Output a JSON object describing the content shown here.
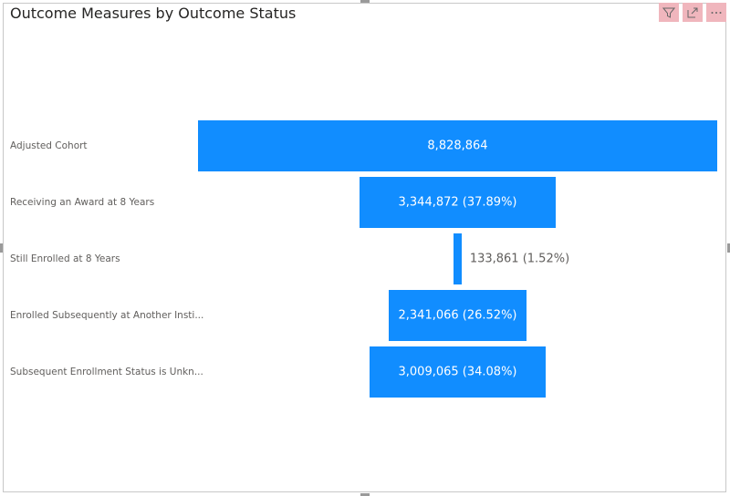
{
  "title": "Outcome Measures by Outcome Status",
  "header_icons": [
    "filter-icon",
    "focus-mode-icon",
    "more-options-icon"
  ],
  "colors": {
    "bar": "#118dff",
    "label_inside": "#ffffff",
    "label_outside": "#605e5c"
  },
  "chart_data": {
    "type": "funnel",
    "categories": [
      "Adjusted Cohort",
      "Receiving an Award at 8 Years",
      "Still Enrolled at 8 Years",
      "Enrolled Subsequently at Another Insti...",
      "Subsequent Enrollment Status is Unkn..."
    ],
    "values": [
      8828864,
      3344872,
      133861,
      2341066,
      3009065
    ],
    "data_labels": [
      "8,828,864",
      "3,344,872 (37.89%)",
      "133,861 (1.52%)",
      "2,341,066 (26.52%)",
      "3,009,065 (34.08%)"
    ]
  }
}
